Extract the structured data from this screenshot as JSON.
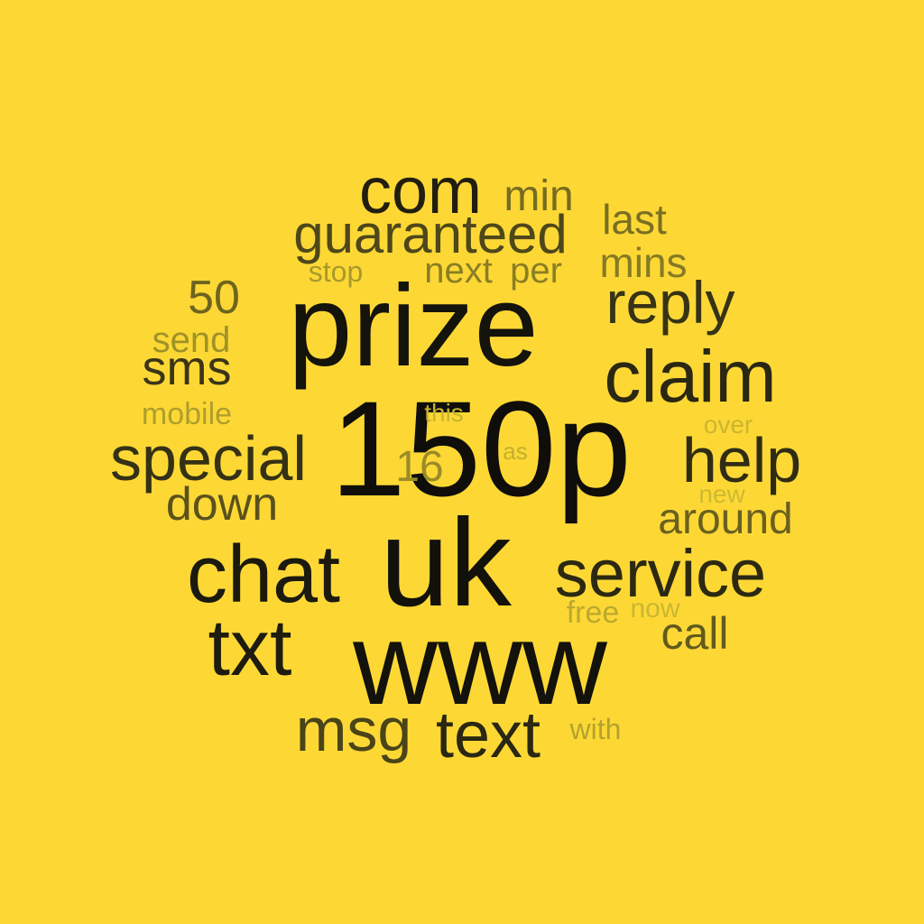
{
  "background_color": "#FDD835",
  "words": [
    {
      "key": "150p",
      "text": "150p",
      "color": "#0F0E0A"
    },
    {
      "key": "uk",
      "text": "uk",
      "color": "#12110B"
    },
    {
      "key": "www",
      "text": "www",
      "color": "#13120C"
    },
    {
      "key": "prize",
      "text": "prize",
      "color": "#14130C"
    },
    {
      "key": "chat",
      "text": "chat",
      "color": "#1C1A0E"
    },
    {
      "key": "txt",
      "text": "txt",
      "color": "#1E1C0F"
    },
    {
      "key": "com",
      "text": "com",
      "color": "#211E0F"
    },
    {
      "key": "claim",
      "text": "claim",
      "color": "#2A2712"
    },
    {
      "key": "service",
      "text": "service",
      "color": "#2C2912"
    },
    {
      "key": "text",
      "text": "text",
      "color": "#2A2712"
    },
    {
      "key": "help",
      "text": "help",
      "color": "#302C14"
    },
    {
      "key": "special",
      "text": "special",
      "color": "#353115"
    },
    {
      "key": "reply",
      "text": "reply",
      "color": "#373316"
    },
    {
      "key": "msg",
      "text": "msg",
      "color": "#4A4418"
    },
    {
      "key": "guaranteed",
      "text": "guaranteed",
      "color": "#4E471A"
    },
    {
      "key": "sms",
      "text": "sms",
      "color": "#3A3517"
    },
    {
      "key": "down",
      "text": "down",
      "color": "#5A521C"
    },
    {
      "key": "around",
      "text": "around",
      "color": "#6A601F"
    },
    {
      "key": "call",
      "text": "call",
      "color": "#625A1E"
    },
    {
      "key": "50",
      "text": "50",
      "color": "#6E641F"
    },
    {
      "key": "min",
      "text": "min",
      "color": "#766B21"
    },
    {
      "key": "last",
      "text": "last",
      "color": "#7A6F22"
    },
    {
      "key": "mins",
      "text": "mins",
      "color": "#867A24"
    },
    {
      "key": "next",
      "text": "next",
      "color": "#8A7E25"
    },
    {
      "key": "per",
      "text": "per",
      "color": "#8A7E25"
    },
    {
      "key": "stop",
      "text": "stop",
      "color": "#A89A2B"
    },
    {
      "key": "send",
      "text": "send",
      "color": "#A09229"
    },
    {
      "key": "mobile",
      "text": "mobile",
      "color": "#AE9F2C"
    },
    {
      "key": "16",
      "text": "16",
      "color": "#9A8C27"
    },
    {
      "key": "this",
      "text": "this",
      "color": "#C7B430"
    },
    {
      "key": "as",
      "text": "as",
      "color": "#C2B02F"
    },
    {
      "key": "over",
      "text": "over",
      "color": "#C9B631"
    },
    {
      "key": "new",
      "text": "new",
      "color": "#CDBA31"
    },
    {
      "key": "free",
      "text": "free",
      "color": "#BBA92E"
    },
    {
      "key": "now",
      "text": "now",
      "color": "#C9B631"
    },
    {
      "key": "with",
      "text": "with",
      "color": "#B3A22D"
    }
  ]
}
